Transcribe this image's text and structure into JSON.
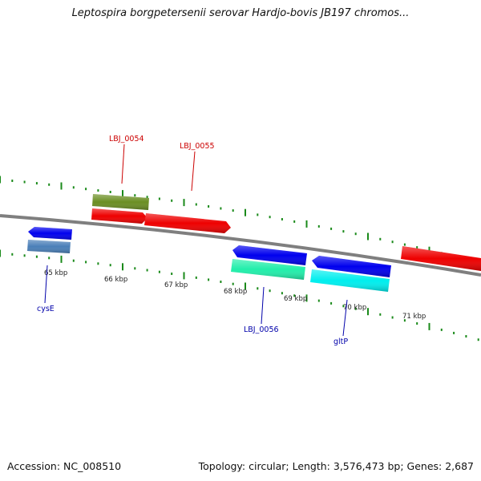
{
  "title": "Leptospira borgpetersenii serovar Hardjo-bovis JB197 chromos...",
  "footer": {
    "accession": "Accession: NC_008510",
    "summary": "Topology: circular; Length: 3,576,473 bp; Genes: 2,687"
  },
  "colors": {
    "backbone": "#7f7f7f",
    "tick": "#1a8a1a",
    "forward_label": "#cc0000",
    "reverse_label": "#0000aa"
  },
  "ticks": [
    {
      "label": "65 kbp"
    },
    {
      "label": "66 kbp"
    },
    {
      "label": "67 kbp"
    },
    {
      "label": "68 kbp"
    },
    {
      "label": "69 kbp"
    },
    {
      "label": "70 kbp"
    },
    {
      "label": "71 kbp"
    }
  ],
  "gene_labels": {
    "lbj_0054": "LBJ_0054",
    "lbj_0055": "LBJ_0055",
    "cyse": "cysE",
    "lbj_0056": "LBJ_0056",
    "gltp": "gltP"
  },
  "features": [
    {
      "id": "cyse-cds",
      "strand": "reverse",
      "color": "#0000ee"
    },
    {
      "id": "cyse-gene",
      "strand": "reverse",
      "color": "#4a7fb8"
    },
    {
      "id": "lbj0054-gene",
      "strand": "forward",
      "color": "#6b8e23"
    },
    {
      "id": "lbj0054-cds",
      "strand": "forward",
      "color": "#ee0000"
    },
    {
      "id": "lbj0055-cds",
      "strand": "forward",
      "color": "#ee0000"
    },
    {
      "id": "lbj0056-cds",
      "strand": "reverse",
      "color": "#0000ee"
    },
    {
      "id": "lbj0056-gene",
      "strand": "reverse",
      "color": "#22eeaa"
    },
    {
      "id": "gltp-cds",
      "strand": "reverse",
      "color": "#0000ee"
    },
    {
      "id": "gltp-gene",
      "strand": "reverse",
      "color": "#00eeee"
    },
    {
      "id": "right-cds",
      "strand": "forward",
      "color": "#ee0000"
    }
  ]
}
